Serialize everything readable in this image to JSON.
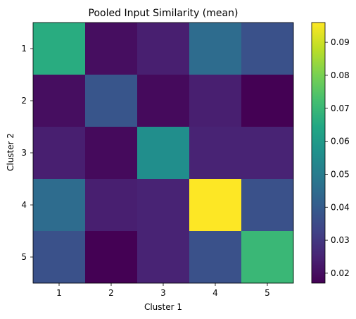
{
  "chart_data": {
    "type": "heatmap",
    "title": "Pooled Input Similarity (mean)",
    "xlabel": "Cluster 1",
    "ylabel": "Cluster 2",
    "x_categories": [
      "1",
      "2",
      "3",
      "4",
      "5"
    ],
    "y_categories": [
      "1",
      "2",
      "3",
      "4",
      "5"
    ],
    "values": [
      [
        0.066,
        0.02,
        0.024,
        0.045,
        0.037
      ],
      [
        0.02,
        0.038,
        0.019,
        0.024,
        0.017
      ],
      [
        0.024,
        0.019,
        0.056,
        0.025,
        0.025
      ],
      [
        0.045,
        0.024,
        0.025,
        0.096,
        0.037
      ],
      [
        0.037,
        0.017,
        0.025,
        0.037,
        0.07
      ]
    ],
    "colormap": "viridis",
    "colorbar": {
      "min": 0.017,
      "max": 0.096,
      "ticks": [
        0.02,
        0.03,
        0.04,
        0.05,
        0.06,
        0.07,
        0.08,
        0.09
      ],
      "tick_labels": [
        "0.02",
        "0.03",
        "0.04",
        "0.05",
        "0.06",
        "0.07",
        "0.08",
        "0.09"
      ]
    },
    "grid": false,
    "legend": "colorbar-right"
  }
}
